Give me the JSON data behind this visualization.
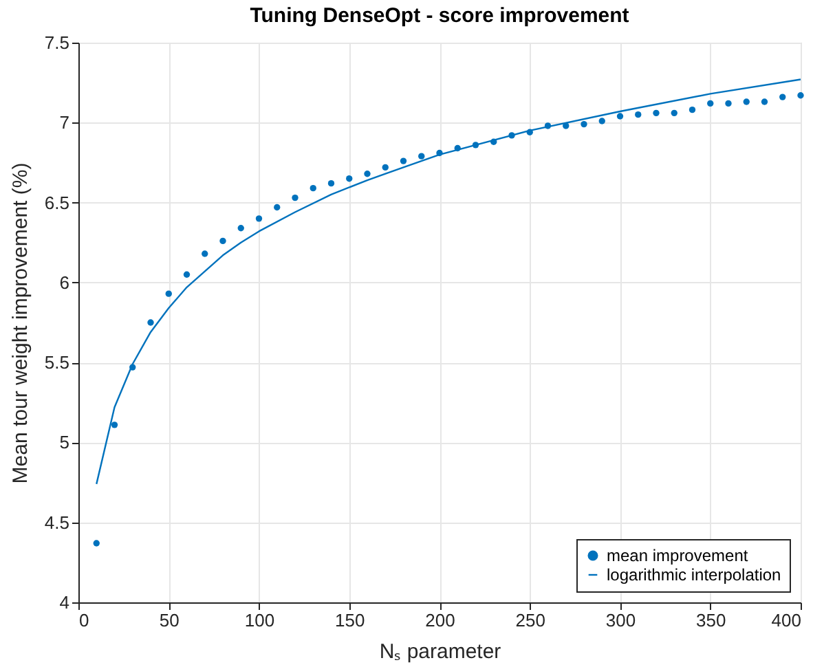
{
  "chart_data": {
    "type": "scatter",
    "title": "Tuning DenseOpt - score improvement",
    "xlabel": "Nₛ parameter",
    "ylabel": "Mean tour weight improvement (%)",
    "series": [
      {
        "name": "mean improvement",
        "color": "#0072bd",
        "marker": "circle",
        "x": [
          10,
          20,
          30,
          40,
          50,
          60,
          70,
          80,
          90,
          100,
          110,
          120,
          130,
          140,
          150,
          160,
          170,
          180,
          190,
          200,
          210,
          220,
          230,
          240,
          250,
          260,
          270,
          280,
          290,
          300,
          310,
          320,
          330,
          340,
          350,
          360,
          370,
          380,
          390,
          400
        ],
        "values": [
          4.37,
          5.11,
          5.47,
          5.75,
          5.93,
          6.05,
          6.18,
          6.26,
          6.34,
          6.4,
          6.47,
          6.53,
          6.59,
          6.62,
          6.65,
          6.68,
          6.72,
          6.76,
          6.79,
          6.81,
          6.84,
          6.86,
          6.88,
          6.92,
          6.94,
          6.98,
          6.98,
          6.99,
          7.01,
          7.04,
          7.05,
          7.06,
          7.06,
          7.08,
          7.12,
          7.12,
          7.13,
          7.13,
          7.16,
          7.17
        ]
      },
      {
        "name": "logarithmic interpolation",
        "type": "line",
        "color": "#0072bd",
        "line_style": "solid",
        "x": [
          10,
          20,
          30,
          40,
          50,
          60,
          70,
          80,
          90,
          100,
          120,
          140,
          160,
          180,
          200,
          250,
          300,
          350,
          400
        ],
        "values": [
          4.74,
          5.22,
          5.49,
          5.69,
          5.84,
          5.97,
          6.07,
          6.17,
          6.25,
          6.32,
          6.44,
          6.55,
          6.64,
          6.72,
          6.8,
          6.95,
          7.07,
          7.18,
          7.27
        ]
      }
    ],
    "xlim": [
      0,
      400
    ],
    "xticks": [
      0,
      50,
      100,
      150,
      200,
      250,
      300,
      350,
      400
    ],
    "ylim": [
      4,
      7.5
    ],
    "yticks": [
      4,
      4.5,
      5,
      5.5,
      6,
      6.5,
      7,
      7.5
    ],
    "grid": true,
    "legend": "bottom right"
  }
}
